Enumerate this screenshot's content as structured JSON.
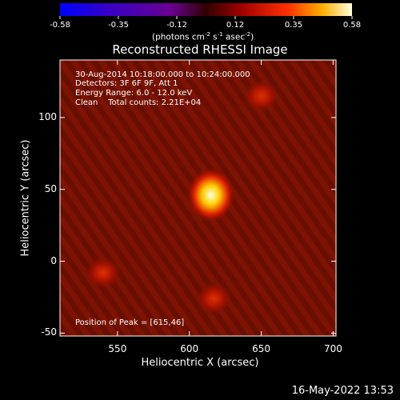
{
  "colorbar": {
    "ticks": [
      "-0.58",
      "-0.35",
      "-0.12",
      "0.12",
      "0.35",
      "0.58"
    ],
    "unit_main": "(photons cm",
    "unit_sup1": "-2",
    "unit_mid": " s",
    "unit_sup2": "-1",
    "unit_mid2": " asec",
    "unit_sup3": "-2",
    "unit_end": ")"
  },
  "chart_data": {
    "type": "heatmap",
    "title": "Reconstructed RHESSI Image",
    "xlabel": "Heliocentric X (arcsec)",
    "ylabel": "Heliocentric Y (arcsec)",
    "xlim": [
      510,
      702
    ],
    "ylim": [
      -52,
      140
    ],
    "xticks": [
      "550",
      "600",
      "650",
      "700"
    ],
    "yticks": [
      "100",
      "50",
      "0",
      "-50"
    ],
    "clim": [
      -0.58,
      0.58
    ],
    "colormap": "rainbow-to-hot",
    "peak": {
      "x": 615,
      "y": 46,
      "value": 0.58
    },
    "secondary_sources": [
      {
        "x": 650,
        "y": 115,
        "value": 0.22
      },
      {
        "x": 540,
        "y": -8,
        "value": 0.16
      },
      {
        "x": 617,
        "y": -26,
        "value": 0.17
      }
    ]
  },
  "annotations": {
    "line1": "30-Aug-2014 10:18:00.000 to 10:24:00.000",
    "line2": "Detectors: 3F 6F 9F, Att 1",
    "line3": "Energy Range: 6.0 - 12.0 keV",
    "line4": "Clean    Total counts: 2.21E+04",
    "peak_text": "Position of Peak = [615,46]"
  },
  "footer": {
    "datestamp": "16-May-2022 13:53"
  }
}
